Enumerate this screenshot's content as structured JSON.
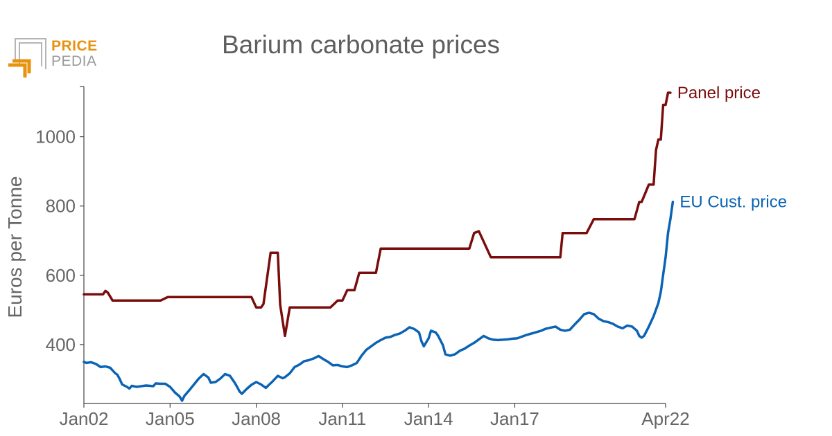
{
  "logo": {
    "line1": "PRICE",
    "line2": "PEDIA",
    "accent_color": "#e8920e",
    "secondary_color": "#9a9a9a"
  },
  "chart_data": {
    "type": "line",
    "title": "Barium carbonate prices",
    "ylabel": "Euros per Tonne",
    "xlabel": "",
    "x_range": [
      "2002-01",
      "2022-04"
    ],
    "ylim": [
      230,
      1145
    ],
    "y_ticks": [
      400,
      600,
      800,
      1000
    ],
    "x_ticks": [
      {
        "label": "Jan02",
        "date": "2002-01"
      },
      {
        "label": "Jan05",
        "date": "2005-01"
      },
      {
        "label": "Jan08",
        "date": "2008-01"
      },
      {
        "label": "Jan11",
        "date": "2011-01"
      },
      {
        "label": "Jan14",
        "date": "2014-01"
      },
      {
        "label": "Jan17",
        "date": "2017-01"
      },
      {
        "label": "Apr22",
        "date": "2022-04"
      }
    ],
    "grid": false,
    "series": [
      {
        "name": "Panel price",
        "color": "#7a0c0c",
        "step": true,
        "points": [
          [
            "2002-01",
            545
          ],
          [
            "2002-09",
            545
          ],
          [
            "2002-10",
            555
          ],
          [
            "2002-11",
            550
          ],
          [
            "2003-01",
            527
          ],
          [
            "2004-09",
            527
          ],
          [
            "2004-12",
            537
          ],
          [
            "2007-11",
            537
          ],
          [
            "2008-01",
            507
          ],
          [
            "2008-03",
            507
          ],
          [
            "2008-04",
            517
          ],
          [
            "2008-07",
            665
          ],
          [
            "2008-10",
            665
          ],
          [
            "2008-11",
            515
          ],
          [
            "2009-01",
            425
          ],
          [
            "2009-03",
            507
          ],
          [
            "2010-08",
            507
          ],
          [
            "2010-11",
            527
          ],
          [
            "2011-01",
            527
          ],
          [
            "2011-03",
            557
          ],
          [
            "2011-06",
            557
          ],
          [
            "2011-08",
            607
          ],
          [
            "2012-03",
            607
          ],
          [
            "2012-05",
            677
          ],
          [
            "2015-06",
            677
          ],
          [
            "2015-08",
            722
          ],
          [
            "2015-10",
            727
          ],
          [
            "2016-03",
            652
          ],
          [
            "2018-08",
            652
          ],
          [
            "2018-09",
            722
          ],
          [
            "2019-07",
            722
          ],
          [
            "2019-10",
            762
          ],
          [
            "2021-03",
            762
          ],
          [
            "2021-05",
            812
          ],
          [
            "2021-06",
            812
          ],
          [
            "2021-09",
            862
          ],
          [
            "2021-11",
            862
          ],
          [
            "2021-12",
            962
          ],
          [
            "2022-01",
            992
          ],
          [
            "2022-02",
            992
          ],
          [
            "2022-03",
            1092
          ],
          [
            "2022-04",
            1092
          ],
          [
            "2022-05",
            1127
          ],
          [
            "2022-06",
            1127
          ]
        ]
      },
      {
        "name": "EU Cust. price",
        "color": "#0a63b4",
        "step": false,
        "points": [
          [
            "2002-01",
            350
          ],
          [
            "2002-02",
            347
          ],
          [
            "2002-04",
            349
          ],
          [
            "2002-06",
            344
          ],
          [
            "2002-08",
            335
          ],
          [
            "2002-10",
            337
          ],
          [
            "2002-12",
            333
          ],
          [
            "2003-02",
            318
          ],
          [
            "2003-03",
            313
          ],
          [
            "2003-04",
            300
          ],
          [
            "2003-05",
            285
          ],
          [
            "2003-07",
            278
          ],
          [
            "2003-08",
            273
          ],
          [
            "2003-09",
            281
          ],
          [
            "2003-11",
            278
          ],
          [
            "2004-01",
            280
          ],
          [
            "2004-03",
            282
          ],
          [
            "2004-06",
            280
          ],
          [
            "2004-07",
            288
          ],
          [
            "2004-09",
            287
          ],
          [
            "2004-11",
            287
          ],
          [
            "2005-01",
            278
          ],
          [
            "2005-03",
            262
          ],
          [
            "2005-05",
            250
          ],
          [
            "2005-06",
            238
          ],
          [
            "2005-07",
            252
          ],
          [
            "2005-09",
            268
          ],
          [
            "2005-11",
            285
          ],
          [
            "2006-01",
            302
          ],
          [
            "2006-03",
            315
          ],
          [
            "2006-05",
            305
          ],
          [
            "2006-06",
            290
          ],
          [
            "2006-08",
            292
          ],
          [
            "2006-10",
            302
          ],
          [
            "2006-12",
            315
          ],
          [
            "2007-02",
            310
          ],
          [
            "2007-04",
            290
          ],
          [
            "2007-05",
            278
          ],
          [
            "2007-06",
            265
          ],
          [
            "2007-07",
            258
          ],
          [
            "2007-09",
            272
          ],
          [
            "2007-11",
            284
          ],
          [
            "2008-01",
            292
          ],
          [
            "2008-03",
            285
          ],
          [
            "2008-05",
            275
          ],
          [
            "2008-06",
            282
          ],
          [
            "2008-08",
            295
          ],
          [
            "2008-10",
            310
          ],
          [
            "2008-12",
            303
          ],
          [
            "2009-01",
            306
          ],
          [
            "2009-03",
            317
          ],
          [
            "2009-05",
            335
          ],
          [
            "2009-07",
            342
          ],
          [
            "2009-09",
            352
          ],
          [
            "2009-11",
            355
          ],
          [
            "2010-01",
            360
          ],
          [
            "2010-03",
            367
          ],
          [
            "2010-05",
            358
          ],
          [
            "2010-07",
            350
          ],
          [
            "2010-09",
            340
          ],
          [
            "2010-11",
            341
          ],
          [
            "2011-01",
            337
          ],
          [
            "2011-03",
            335
          ],
          [
            "2011-05",
            340
          ],
          [
            "2011-07",
            347
          ],
          [
            "2011-09",
            368
          ],
          [
            "2011-11",
            385
          ],
          [
            "2012-01",
            395
          ],
          [
            "2012-03",
            405
          ],
          [
            "2012-05",
            413
          ],
          [
            "2012-07",
            420
          ],
          [
            "2012-09",
            422
          ],
          [
            "2012-11",
            428
          ],
          [
            "2013-01",
            432
          ],
          [
            "2013-03",
            440
          ],
          [
            "2013-05",
            450
          ],
          [
            "2013-07",
            445
          ],
          [
            "2013-09",
            435
          ],
          [
            "2013-10",
            410
          ],
          [
            "2013-11",
            395
          ],
          [
            "2014-01",
            418
          ],
          [
            "2014-02",
            440
          ],
          [
            "2014-04",
            435
          ],
          [
            "2014-05",
            425
          ],
          [
            "2014-07",
            398
          ],
          [
            "2014-08",
            372
          ],
          [
            "2014-10",
            368
          ],
          [
            "2014-12",
            372
          ],
          [
            "2015-02",
            382
          ],
          [
            "2015-04",
            388
          ],
          [
            "2015-06",
            397
          ],
          [
            "2015-08",
            405
          ],
          [
            "2015-10",
            415
          ],
          [
            "2015-12",
            425
          ],
          [
            "2016-02",
            418
          ],
          [
            "2016-04",
            414
          ],
          [
            "2016-06",
            413
          ],
          [
            "2016-08",
            414
          ],
          [
            "2016-10",
            415
          ],
          [
            "2016-12",
            417
          ],
          [
            "2017-02",
            418
          ],
          [
            "2017-04",
            423
          ],
          [
            "2017-06",
            428
          ],
          [
            "2017-08",
            432
          ],
          [
            "2017-10",
            436
          ],
          [
            "2017-12",
            440
          ],
          [
            "2018-02",
            446
          ],
          [
            "2018-04",
            449
          ],
          [
            "2018-06",
            452
          ],
          [
            "2018-08",
            443
          ],
          [
            "2018-10",
            440
          ],
          [
            "2018-12",
            443
          ],
          [
            "2019-02",
            458
          ],
          [
            "2019-04",
            472
          ],
          [
            "2019-06",
            488
          ],
          [
            "2019-08",
            492
          ],
          [
            "2019-10",
            488
          ],
          [
            "2019-12",
            475
          ],
          [
            "2020-02",
            468
          ],
          [
            "2020-04",
            465
          ],
          [
            "2020-06",
            460
          ],
          [
            "2020-08",
            452
          ],
          [
            "2020-10",
            447
          ],
          [
            "2020-12",
            455
          ],
          [
            "2021-02",
            452
          ],
          [
            "2021-04",
            440
          ],
          [
            "2021-05",
            425
          ],
          [
            "2021-06",
            420
          ],
          [
            "2021-07",
            425
          ],
          [
            "2021-09",
            452
          ],
          [
            "2021-11",
            482
          ],
          [
            "2022-01",
            520
          ],
          [
            "2022-02",
            552
          ],
          [
            "2022-03",
            602
          ],
          [
            "2022-04",
            652
          ],
          [
            "2022-05",
            722
          ],
          [
            "2022-06",
            762
          ],
          [
            "2022-07",
            812
          ]
        ]
      }
    ]
  }
}
